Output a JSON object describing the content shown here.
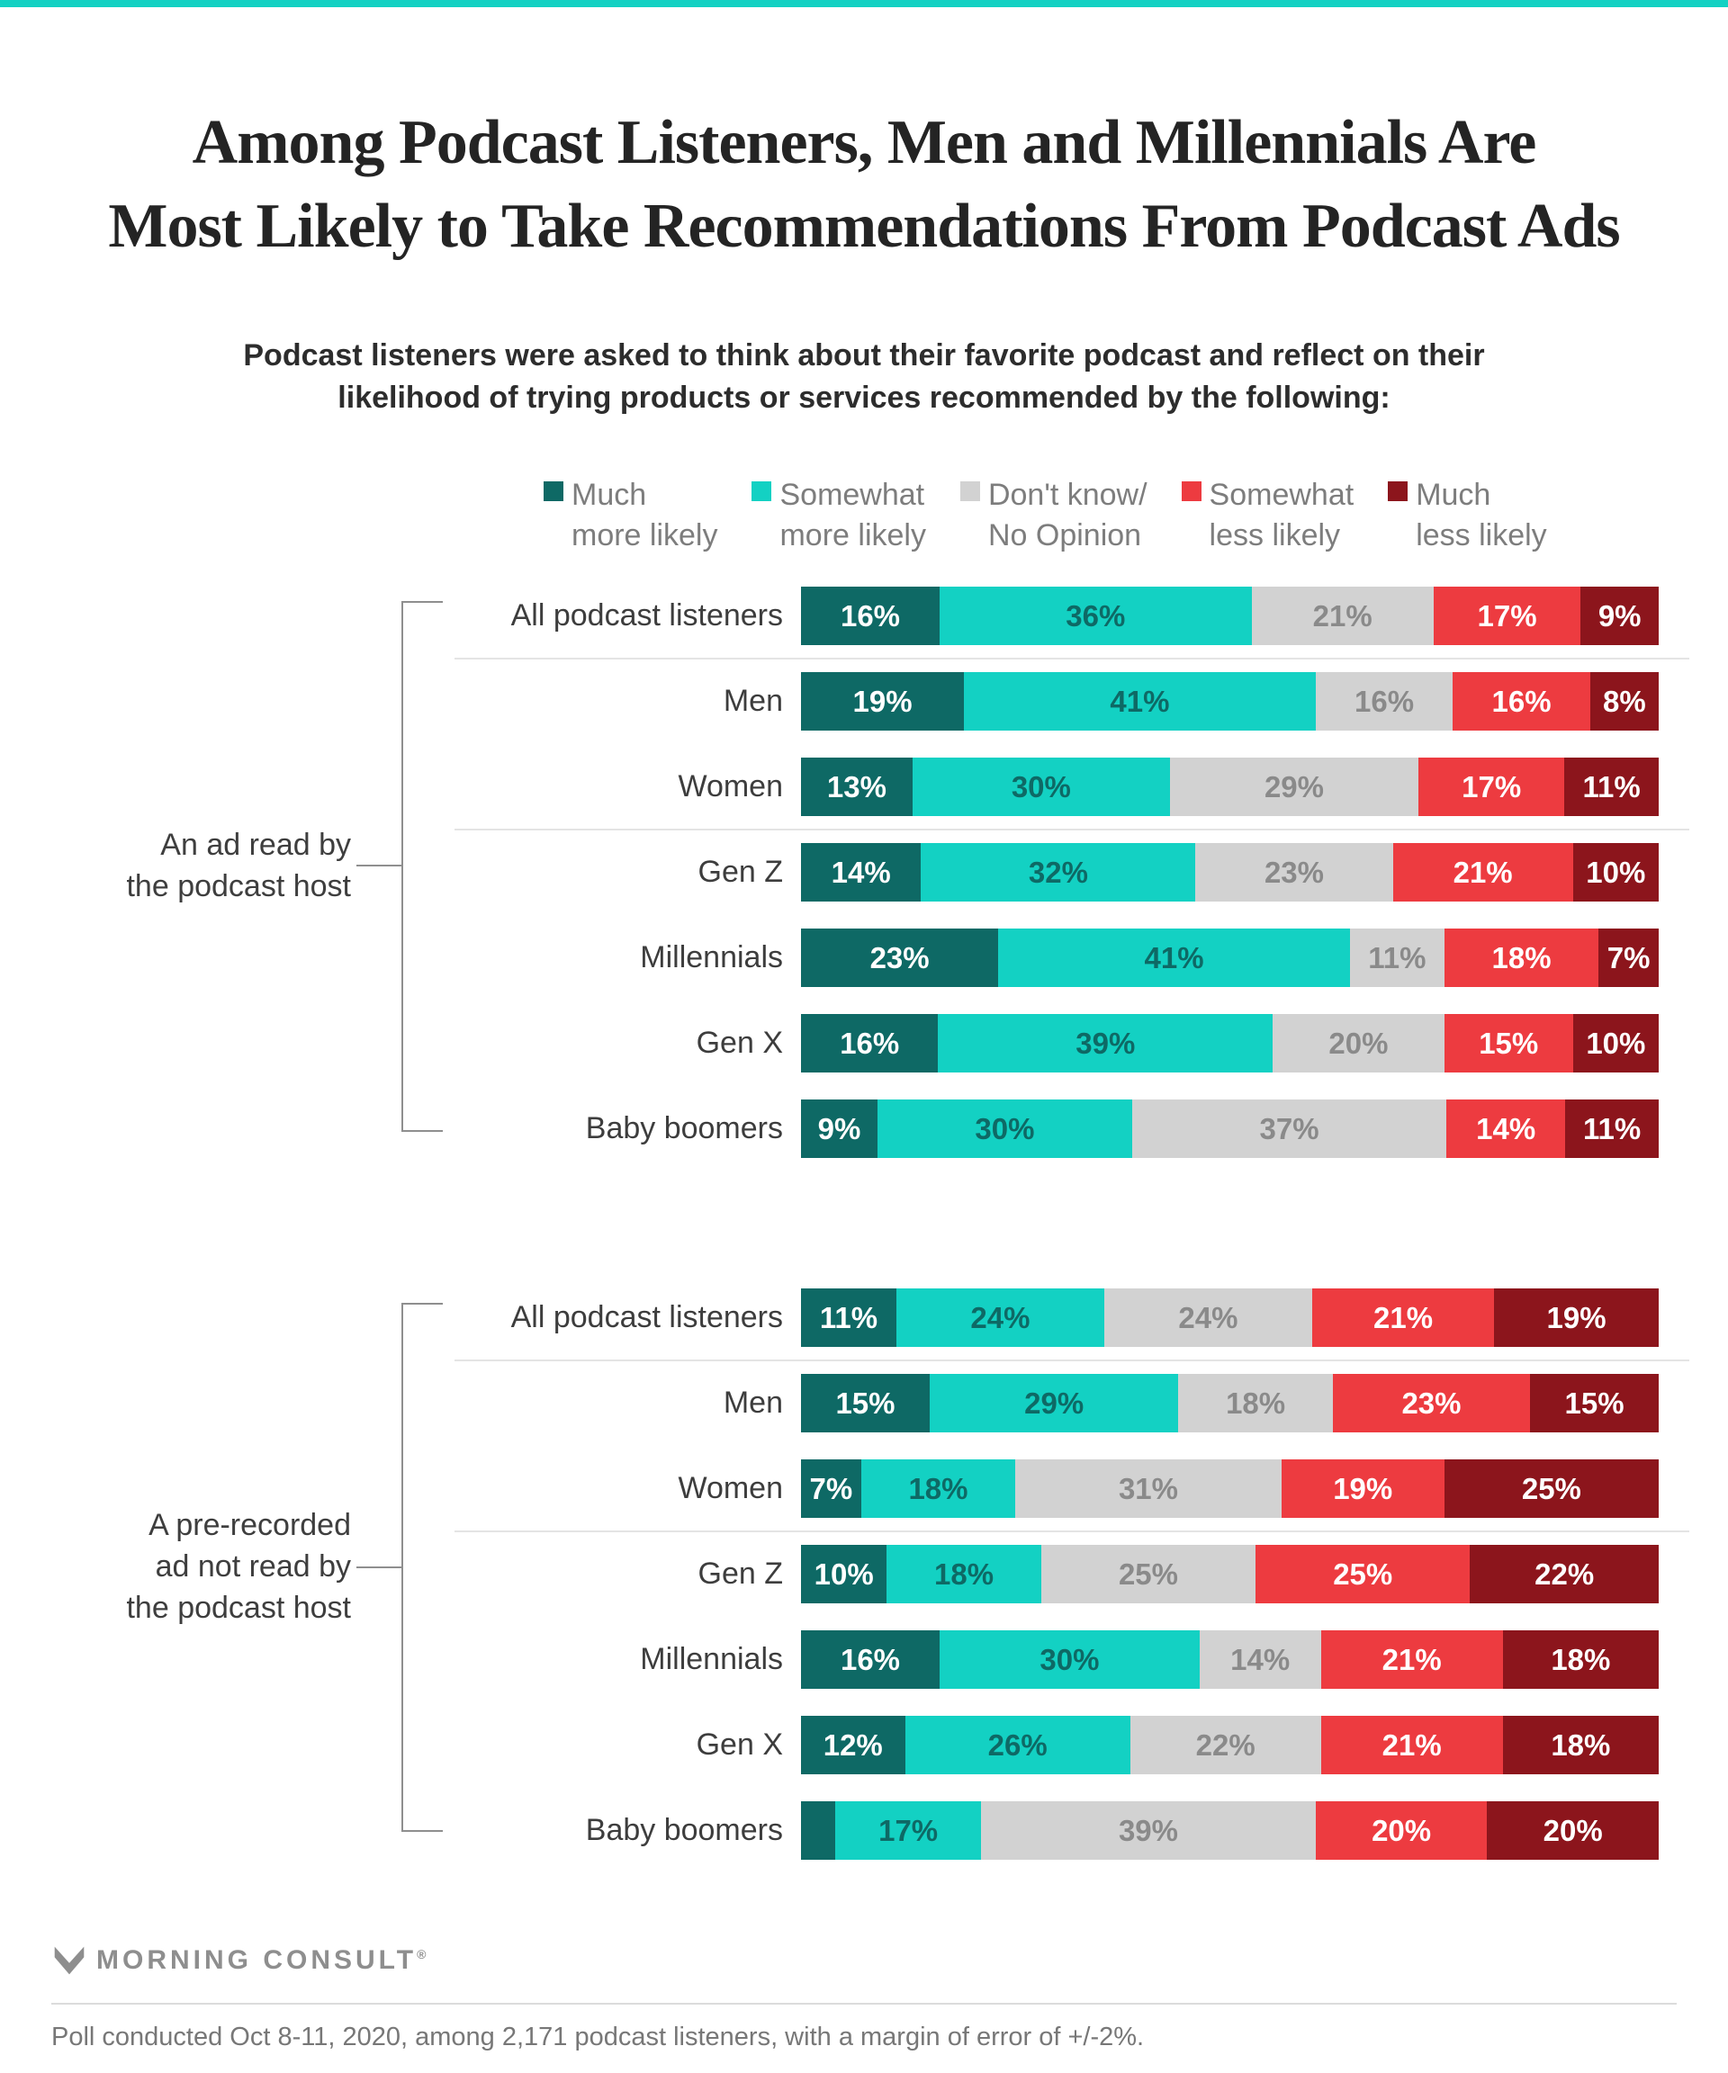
{
  "page": {
    "topbar_color": "#13d1c3",
    "footer": {
      "brand": "MORNING CONSULT",
      "brand_registered": "®",
      "source": "Poll conducted Oct 8-11, 2020, among 2,171 podcast listeners, with a margin of error of +/-2%."
    }
  },
  "chart_data": {
    "type": "bar",
    "orientation": "horizontal",
    "stacked": true,
    "normalized_to_full_width": true,
    "unit": "%",
    "title_lines": [
      "Among Podcast Listeners, Men and Millennials Are",
      "Most Likely to Take Recommendations From Podcast Ads"
    ],
    "subtitle_lines": [
      "Podcast listeners were asked to think about their favorite podcast and reflect on their",
      "likelihood of trying products or services recommended by the following:"
    ],
    "legend_position": "top",
    "legend": [
      {
        "label": "Much more likely",
        "line1": "Much",
        "line2": "more likely",
        "color": "#0e6965"
      },
      {
        "label": "Somewhat more likely",
        "line1": "Somewhat",
        "line2": "more likely",
        "color": "#13d1c3"
      },
      {
        "label": "Don't know/ No Opinion",
        "line1": "Don't know/",
        "line2": "No Opinion",
        "color": "#d2d2d2"
      },
      {
        "label": "Somewhat less likely",
        "line1": "Somewhat",
        "line2": "less likely",
        "color": "#ed3b40"
      },
      {
        "label": "Much less likely",
        "line1": "Much",
        "line2": "less likely",
        "color": "#8c151c"
      }
    ],
    "categories": [
      "All podcast listeners",
      "Men",
      "Women",
      "Gen Z",
      "Millennials",
      "Gen X",
      "Baby boomers"
    ],
    "groups": [
      {
        "name": "An ad read by the podcast host",
        "name_lines": [
          "An ad read by",
          "the podcast host"
        ],
        "rows": [
          {
            "category": "All podcast listeners",
            "values": [
              16,
              36,
              21,
              17,
              9
            ]
          },
          {
            "category": "Men",
            "values": [
              19,
              41,
              16,
              16,
              8
            ]
          },
          {
            "category": "Women",
            "values": [
              13,
              30,
              29,
              17,
              11
            ]
          },
          {
            "category": "Gen Z",
            "values": [
              14,
              32,
              23,
              21,
              10
            ]
          },
          {
            "category": "Millennials",
            "values": [
              23,
              41,
              11,
              18,
              7
            ]
          },
          {
            "category": "Gen X",
            "values": [
              16,
              39,
              20,
              15,
              10
            ]
          },
          {
            "category": "Baby boomers",
            "values": [
              9,
              30,
              37,
              14,
              11
            ]
          }
        ]
      },
      {
        "name": "A pre-recorded ad not read by the podcast host",
        "name_lines": [
          "A pre-recorded",
          "ad not read by",
          "the podcast host"
        ],
        "rows": [
          {
            "category": "All podcast listeners",
            "values": [
              11,
              24,
              24,
              21,
              19
            ]
          },
          {
            "category": "Men",
            "values": [
              15,
              29,
              18,
              23,
              15
            ]
          },
          {
            "category": "Women",
            "values": [
              7,
              18,
              31,
              19,
              25
            ]
          },
          {
            "category": "Gen Z",
            "values": [
              10,
              18,
              25,
              25,
              22
            ]
          },
          {
            "category": "Millennials",
            "values": [
              16,
              30,
              14,
              21,
              18
            ]
          },
          {
            "category": "Gen X",
            "values": [
              12,
              26,
              22,
              21,
              18
            ]
          },
          {
            "category": "Baby boomers",
            "values": [
              4,
              17,
              39,
              20,
              20
            ],
            "hidden_labels": [
              0
            ]
          }
        ]
      }
    ]
  }
}
